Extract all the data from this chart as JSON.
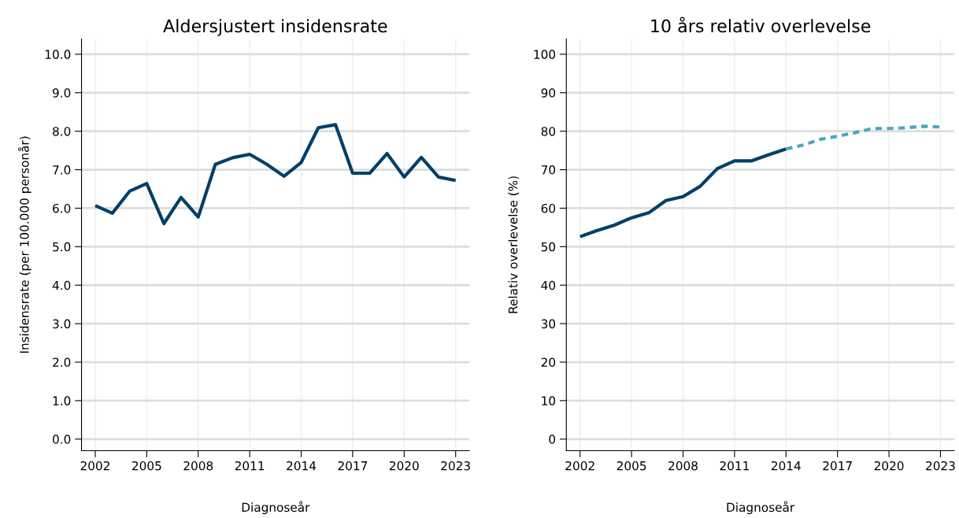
{
  "chart_data": [
    {
      "type": "line",
      "title": "Aldersjustert insidensrate",
      "xlabel": "Diagnoseår",
      "ylabel": "Insidensrate (per 100.000 personår)",
      "x": [
        2002,
        2003,
        2004,
        2005,
        2006,
        2007,
        2008,
        2009,
        2010,
        2011,
        2012,
        2013,
        2014,
        2015,
        2016,
        2017,
        2018,
        2019,
        2020,
        2021,
        2022,
        2023
      ],
      "series": [
        {
          "color": "#003f6b",
          "line_style": "solid",
          "values": [
            6.07,
            5.87,
            6.44,
            6.64,
            5.6,
            6.28,
            5.77,
            7.14,
            7.31,
            7.4,
            7.14,
            6.83,
            7.19,
            8.09,
            8.17,
            6.91,
            6.91,
            7.42,
            6.81,
            7.32,
            6.81,
            6.72
          ]
        }
      ],
      "xlim": [
        2001.2,
        2023.8
      ],
      "xticks": [
        2002,
        2005,
        2008,
        2011,
        2014,
        2017,
        2020,
        2023
      ],
      "ylim": [
        -0.3,
        10.4
      ],
      "yticks": [
        {
          "value": 0,
          "label": "0.0"
        },
        {
          "value": 1,
          "label": "1.0"
        },
        {
          "value": 2,
          "label": "2.0"
        },
        {
          "value": 3,
          "label": "3.0"
        },
        {
          "value": 4,
          "label": "4.0"
        },
        {
          "value": 5,
          "label": "5.0"
        },
        {
          "value": 6,
          "label": "6.0"
        },
        {
          "value": 7,
          "label": "7.0"
        },
        {
          "value": 8,
          "label": "8.0"
        },
        {
          "value": 9,
          "label": "9.0"
        },
        {
          "value": 10,
          "label": "10.0"
        }
      ],
      "grid": true,
      "marker": "none"
    },
    {
      "type": "line",
      "title": "10 års relativ overlevelse",
      "xlabel": "Diagnoseår",
      "ylabel": "Relativ overlevelse (%)",
      "series": [
        {
          "color": "#003f6b",
          "line_style": "solid",
          "x": [
            2002,
            2003,
            2004,
            2005,
            2006,
            2007,
            2008,
            2009,
            2010,
            2011,
            2012,
            2013,
            2014
          ],
          "values": [
            52.6,
            54.2,
            55.6,
            57.5,
            58.8,
            62.0,
            63.0,
            65.7,
            70.3,
            72.3,
            72.3,
            73.9,
            75.4
          ]
        },
        {
          "color": "#4aa8c0",
          "line_style": "dashed",
          "x": [
            2014,
            2015,
            2016,
            2017,
            2018,
            2019,
            2020,
            2021,
            2022,
            2023
          ],
          "values": [
            75.4,
            76.4,
            77.9,
            78.7,
            79.6,
            80.7,
            80.7,
            80.9,
            81.3,
            81.1
          ]
        }
      ],
      "xlim": [
        2001.2,
        2023.8
      ],
      "xticks": [
        2002,
        2005,
        2008,
        2011,
        2014,
        2017,
        2020,
        2023
      ],
      "ylim": [
        -3,
        104
      ],
      "yticks": [
        0,
        10,
        20,
        30,
        40,
        50,
        60,
        70,
        80,
        90,
        100
      ],
      "grid": true,
      "marker": "none"
    }
  ]
}
